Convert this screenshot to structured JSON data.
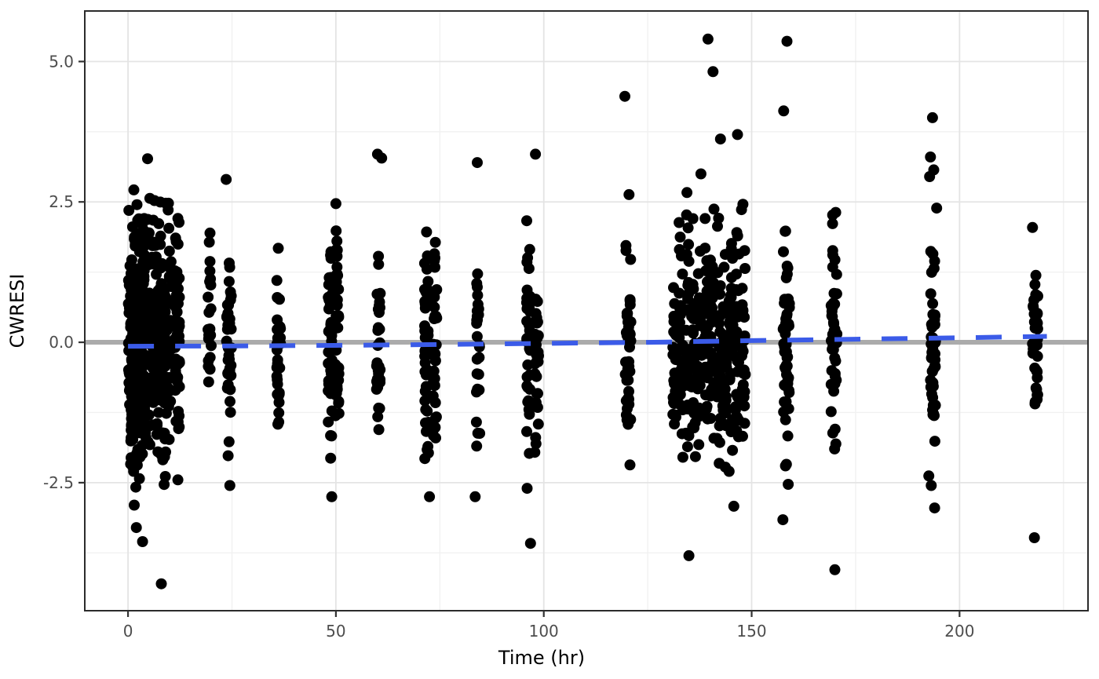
{
  "chart_data": {
    "type": "scatter",
    "title": "",
    "xlabel": "Time (hr)",
    "ylabel": "CWRESI",
    "xlim": [
      -10.4,
      230.9
    ],
    "ylim": [
      -4.78,
      5.9
    ],
    "grid": "on",
    "legend": "none",
    "x_ticks": [
      {
        "v": 0,
        "label": "0"
      },
      {
        "v": 50,
        "label": "50"
      },
      {
        "v": 100,
        "label": "100"
      },
      {
        "v": 150,
        "label": "150"
      },
      {
        "v": 200,
        "label": "200"
      }
    ],
    "x_minor_ticks": [
      25,
      75,
      125,
      175,
      225
    ],
    "y_ticks": [
      {
        "v": -2.5,
        "label": "-2.5"
      },
      {
        "v": 0.0,
        "label": "0.0"
      },
      {
        "v": 2.5,
        "label": "2.5"
      },
      {
        "v": 5.0,
        "label": "5.0"
      }
    ],
    "y_minor_ticks": [
      -3.75,
      -1.25,
      1.25,
      3.75
    ],
    "reference_line": {
      "y": 0,
      "color": "#ABABAB",
      "width": 6,
      "style": "solid"
    },
    "smoother": {
      "color": "#3B5BE8",
      "style": "dashed",
      "width": 6,
      "dash": [
        33,
        27
      ],
      "points": [
        {
          "t": 0,
          "v": -0.07
        },
        {
          "t": 25,
          "v": -0.065
        },
        {
          "t": 50,
          "v": -0.055
        },
        {
          "t": 75,
          "v": -0.04
        },
        {
          "t": 100,
          "v": -0.02
        },
        {
          "t": 125,
          "v": 0.0
        },
        {
          "t": 150,
          "v": 0.03
        },
        {
          "t": 175,
          "v": 0.055
        },
        {
          "t": 200,
          "v": 0.08
        },
        {
          "t": 221,
          "v": 0.105
        }
      ]
    },
    "point_color": "#000000",
    "point_radius": 7,
    "seed": 42,
    "clusters": [
      {
        "times": [
          0.5,
          1,
          1.5,
          2,
          2.5,
          3,
          3.5,
          4,
          5,
          6,
          7,
          8,
          9,
          10
        ],
        "n_each": 32,
        "mean": -0.05,
        "sd": 1.15,
        "clip": [
          -2.6,
          3.3
        ],
        "jitter": 0.8
      },
      {
        "times": [
          11.8
        ],
        "n_each": 58,
        "mean": -0.05,
        "sd": 1.15,
        "clip": [
          -2.45,
          2.7
        ],
        "jitter": 1.2
      },
      {
        "times": [
          19.6
        ],
        "n_each": 22,
        "mean": 0.1,
        "sd": 0.9,
        "clip": [
          -1.65,
          2.25
        ],
        "jitter": 0.8
      },
      {
        "times": [
          24.3
        ],
        "n_each": 38,
        "mean": -0.1,
        "sd": 1.0,
        "clip": [
          -2.15,
          2.2
        ],
        "jitter": 1.2
      },
      {
        "times": [
          36.2
        ],
        "n_each": 28,
        "mean": -0.1,
        "sd": 0.95,
        "clip": [
          -1.8,
          1.85
        ],
        "jitter": 1.0
      },
      {
        "times": [
          48.6
        ],
        "n_each": 42,
        "mean": -0.05,
        "sd": 1.0,
        "clip": [
          -2.2,
          2.15
        ],
        "jitter": 0.9
      },
      {
        "times": [
          50.3
        ],
        "n_each": 40,
        "mean": 0.0,
        "sd": 1.0,
        "clip": [
          -2.2,
          2.1
        ],
        "jitter": 0.9
      },
      {
        "times": [
          60.2
        ],
        "n_each": 34,
        "mean": 0.0,
        "sd": 1.0,
        "clip": [
          -1.95,
          2.2
        ],
        "jitter": 1.0
      },
      {
        "times": [
          71.8
        ],
        "n_each": 48,
        "mean": -0.05,
        "sd": 1.0,
        "clip": [
          -2.1,
          2.0
        ],
        "jitter": 1.0
      },
      {
        "times": [
          73.8
        ],
        "n_each": 34,
        "mean": -0.1,
        "sd": 1.0,
        "clip": [
          -2.0,
          2.0
        ],
        "jitter": 0.9
      },
      {
        "times": [
          84.2
        ],
        "n_each": 26,
        "mean": -0.2,
        "sd": 1.05,
        "clip": [
          -2.15,
          1.95
        ],
        "jitter": 0.8
      },
      {
        "times": [
          96.3
        ],
        "n_each": 40,
        "mean": -0.15,
        "sd": 1.1,
        "clip": [
          -2.35,
          2.3
        ],
        "jitter": 0.9
      },
      {
        "times": [
          98.3
        ],
        "n_each": 30,
        "mean": -0.1,
        "sd": 1.1,
        "clip": [
          -2.4,
          2.5
        ],
        "jitter": 0.9
      },
      {
        "times": [
          120.3
        ],
        "n_each": 42,
        "mean": -0.15,
        "sd": 1.0,
        "clip": [
          -2.25,
          1.85
        ],
        "jitter": 1.4
      },
      {
        "times": [
          131.5,
          133,
          134.5,
          136,
          137.5,
          139,
          140.5,
          142,
          143.5,
          145,
          146.5,
          148
        ],
        "n_each": 29,
        "mean": -0.1,
        "sd": 1.05,
        "clip": [
          -2.7,
          2.9
        ],
        "jitter": 1.0
      },
      {
        "times": [
          158.3
        ],
        "n_each": 52,
        "mean": -0.15,
        "sd": 1.1,
        "clip": [
          -2.55,
          2.15
        ],
        "jitter": 1.6
      },
      {
        "times": [
          169.8
        ],
        "n_each": 44,
        "mean": 0.0,
        "sd": 1.1,
        "clip": [
          -2.4,
          2.35
        ],
        "jitter": 1.4
      },
      {
        "times": [
          193.6
        ],
        "n_each": 48,
        "mean": 0.0,
        "sd": 1.05,
        "clip": [
          -1.8,
          1.9
        ],
        "jitter": 1.3
      },
      {
        "times": [
          218.2
        ],
        "n_each": 38,
        "mean": 0.1,
        "sd": 0.95,
        "clip": [
          -1.95,
          2.1
        ],
        "jitter": 1.3
      }
    ],
    "outliers": [
      {
        "t": 8,
        "v": -4.3
      },
      {
        "t": 3.5,
        "v": -3.55
      },
      {
        "t": 2,
        "v": -3.3
      },
      {
        "t": 1.5,
        "v": -2.9
      },
      {
        "t": 12,
        "v": -2.45
      },
      {
        "t": 23.6,
        "v": 2.9
      },
      {
        "t": 24.5,
        "v": -2.55
      },
      {
        "t": 49,
        "v": -2.75
      },
      {
        "t": 50,
        "v": 2.47
      },
      {
        "t": 60,
        "v": 3.35
      },
      {
        "t": 61,
        "v": 3.28
      },
      {
        "t": 72.5,
        "v": -2.75
      },
      {
        "t": 84,
        "v": 3.2
      },
      {
        "t": 83.5,
        "v": -2.75
      },
      {
        "t": 98,
        "v": 3.35
      },
      {
        "t": 96.8,
        "v": -3.58
      },
      {
        "t": 96,
        "v": -2.6
      },
      {
        "t": 119.5,
        "v": 4.38
      },
      {
        "t": 120.5,
        "v": 2.63
      },
      {
        "t": 137.8,
        "v": 3.0
      },
      {
        "t": 139.5,
        "v": 5.4
      },
      {
        "t": 140.7,
        "v": 4.82
      },
      {
        "t": 142.5,
        "v": 3.62
      },
      {
        "t": 146.6,
        "v": 3.7
      },
      {
        "t": 134.9,
        "v": -3.8
      },
      {
        "t": 145.7,
        "v": -2.92
      },
      {
        "t": 158.5,
        "v": 5.36
      },
      {
        "t": 157.7,
        "v": 4.12
      },
      {
        "t": 157.5,
        "v": -3.16
      },
      {
        "t": 158.8,
        "v": -2.53
      },
      {
        "t": 170,
        "v": -4.05
      },
      {
        "t": 193.5,
        "v": 4.0
      },
      {
        "t": 193,
        "v": 3.3
      },
      {
        "t": 193.8,
        "v": 3.07
      },
      {
        "t": 192.8,
        "v": 2.95
      },
      {
        "t": 194.5,
        "v": 2.39
      },
      {
        "t": 193.2,
        "v": -2.55
      },
      {
        "t": 194,
        "v": -2.95
      },
      {
        "t": 192.6,
        "v": -2.38
      },
      {
        "t": 218,
        "v": -3.48
      }
    ],
    "colors": {
      "panel_background": "#FFFFFF",
      "panel_border": "#2B2B2B",
      "grid_major": "#E4E4E4",
      "grid_minor": "#F1F1F1",
      "tick_mark": "#333333",
      "tick_label": "#4D4D4D",
      "axis_title": "#000000"
    }
  }
}
